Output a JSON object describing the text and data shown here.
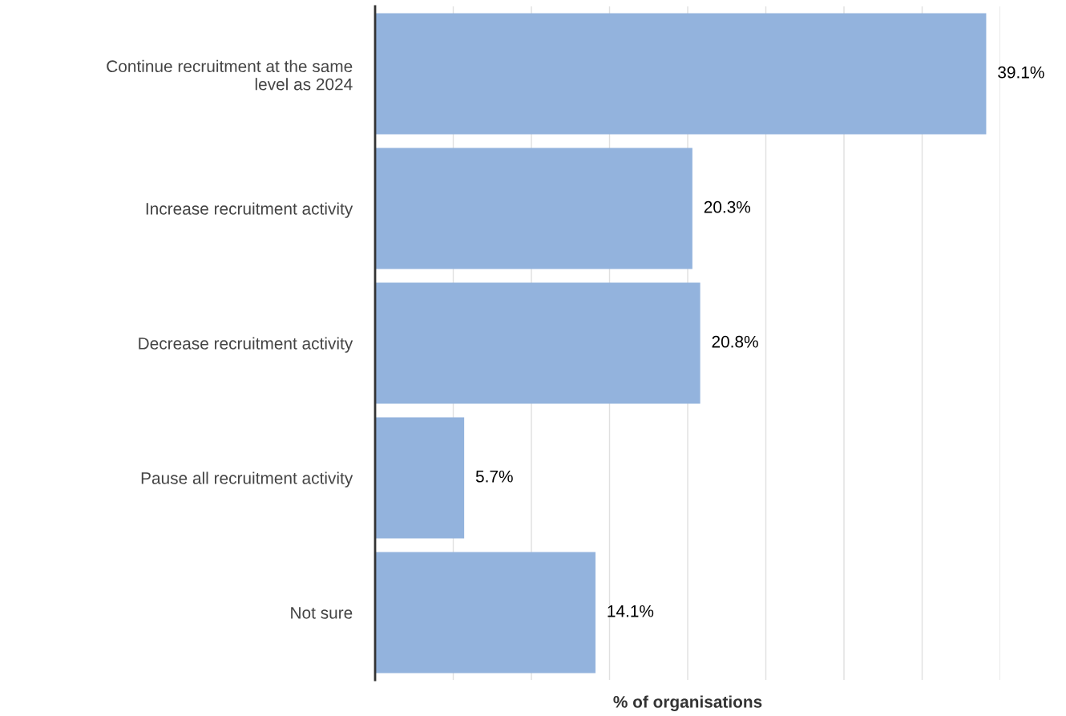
{
  "chart_data": {
    "type": "bar",
    "orientation": "horizontal",
    "xlabel": "% of organisations",
    "categories": [
      "Continue recruitment at the same\nlevel as 2024",
      "Increase recruitment activity",
      "Decrease recruitment activity",
      "Pause all recruitment activity",
      "Not sure"
    ],
    "values": [
      39.1,
      20.3,
      20.8,
      5.7,
      14.1
    ],
    "value_labels": [
      "39.1%",
      "20.3%",
      "20.8%",
      "5.7%",
      "14.1%"
    ],
    "color": "#93b3dd",
    "xlim": [
      0,
      40
    ],
    "xticks": [
      {
        "value": 0,
        "label": null
      },
      {
        "value": 5,
        "label": null
      },
      {
        "value": 10,
        "label": null
      },
      {
        "value": 15,
        "label": null
      },
      {
        "value": 20,
        "label": null
      },
      {
        "value": 25,
        "label": null
      },
      {
        "value": 30,
        "label": null
      },
      {
        "value": 35,
        "label": null
      },
      {
        "value": 40,
        "label": null
      }
    ],
    "tick_labels": "y",
    "grid": "x",
    "legend": false
  }
}
